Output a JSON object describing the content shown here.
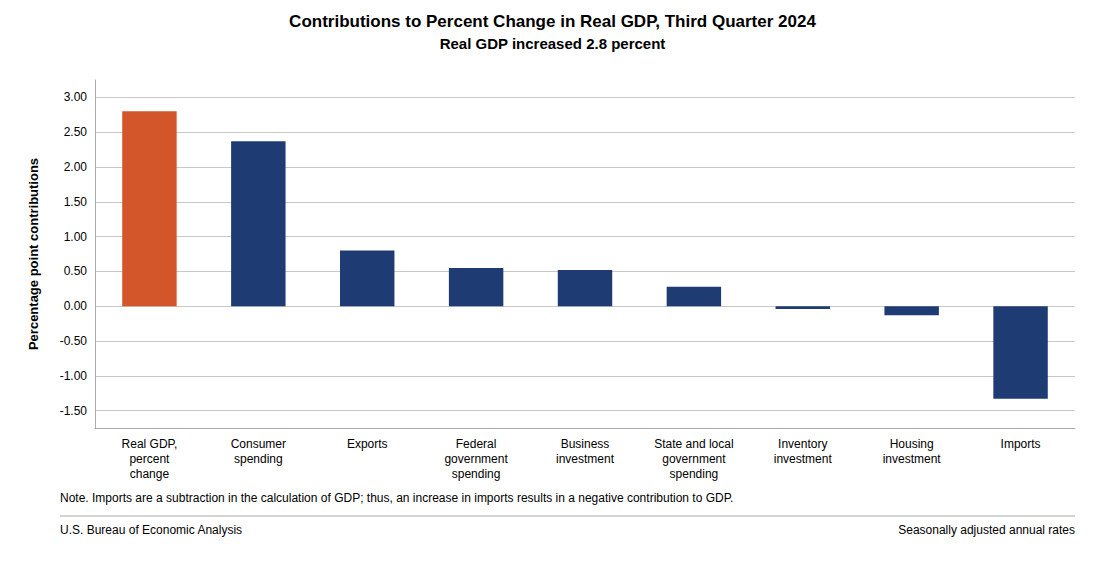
{
  "chart_data": {
    "type": "bar",
    "title": "Contributions to Percent Change in Real GDP, Third Quarter 2024",
    "subtitle": "Real GDP increased 2.8 percent",
    "categories": [
      "Real GDP,\npercent\nchange",
      "Consumer\nspending",
      "Exports",
      "Federal\ngovernment\nspending",
      "Business\ninvestment",
      "State and local\ngovernment\nspending",
      "Inventory\ninvestment",
      "Housing\ninvestment",
      "Imports"
    ],
    "values": [
      2.8,
      2.37,
      0.8,
      0.55,
      0.52,
      0.28,
      -0.04,
      -0.13,
      -1.33
    ],
    "colors": [
      "#D2562A",
      "#1F3B73",
      "#1F3B73",
      "#1F3B73",
      "#1F3B73",
      "#1F3B73",
      "#1F3B73",
      "#1F3B73",
      "#1F3B73"
    ],
    "ylabel": "Percentage point contributions",
    "ylim": [
      -1.75,
      3.25
    ],
    "yticks": [
      {
        "value": -1.5,
        "label": "-1.50"
      },
      {
        "value": -1.0,
        "label": "-1.00"
      },
      {
        "value": -0.5,
        "label": "-0.50"
      },
      {
        "value": 0,
        "label": "0.00"
      },
      {
        "value": 0.5,
        "label": "0.50"
      },
      {
        "value": 1.0,
        "label": "1.00"
      },
      {
        "value": 1.5,
        "label": "1.50"
      },
      {
        "value": 2.0,
        "label": "2.00"
      },
      {
        "value": 2.5,
        "label": "2.50"
      },
      {
        "value": 3.0,
        "label": "3.00"
      }
    ],
    "grid": true,
    "annotations": [
      "Note. Imports are a subtraction in the calculation of GDP; thus, an increase in imports results in a negative contribution to GDP.",
      "U.S. Bureau of Economic Analysis",
      "Seasonally adjusted annual rates"
    ]
  }
}
